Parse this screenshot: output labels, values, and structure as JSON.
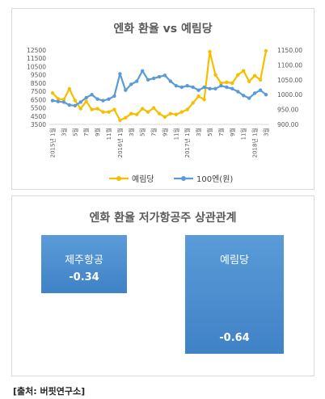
{
  "chart_data": [
    {
      "type": "line",
      "title": "엔화 환율 vs 예림당",
      "x": [
        "2015년 1월",
        "2월",
        "3월",
        "4월",
        "5월",
        "6월",
        "7월",
        "8월",
        "9월",
        "10월",
        "11월",
        "12월",
        "2016년 1월",
        "2월",
        "3월",
        "4월",
        "5월",
        "6월",
        "7월",
        "8월",
        "9월",
        "10월",
        "11월",
        "12월",
        "2017년 1월",
        "2월",
        "3월",
        "4월",
        "5월",
        "6월",
        "7월",
        "8월",
        "9월",
        "10월",
        "11월",
        "12월",
        "2018년 1월",
        "2월",
        "3월"
      ],
      "x_tick_labels": [
        "2015년 1월",
        "3월",
        "5월",
        "7월",
        "9월",
        "11월",
        "2016년 1월",
        "3월",
        "5월",
        "7월",
        "9월",
        "11월",
        "2017년 1월",
        "3월",
        "5월",
        "7월",
        "9월",
        "11월",
        "2018년 1월",
        "3월"
      ],
      "left_axis": {
        "min": 3500,
        "max": 12500,
        "ticks": [
          3500,
          4500,
          5500,
          6500,
          7500,
          8500,
          9500,
          10500,
          11500,
          12500
        ]
      },
      "right_axis": {
        "min": 900,
        "max": 1150,
        "ticks": [
          "900.00",
          "950.00",
          "1000.00",
          "1050.00",
          "1100.00",
          "1150.00"
        ]
      },
      "series": [
        {
          "name": "예림당",
          "axis": "left",
          "color": "#f5bf00",
          "values": [
            7300,
            6600,
            6500,
            7800,
            6400,
            5400,
            6300,
            5300,
            5400,
            5000,
            5000,
            5300,
            4000,
            4300,
            4800,
            4700,
            5400,
            5000,
            5500,
            4800,
            4400,
            4800,
            4700,
            5000,
            5300,
            6100,
            6900,
            6500,
            12300,
            9500,
            8500,
            8600,
            8500,
            9500,
            10000,
            8700,
            9400,
            8900,
            12400
          ]
        },
        {
          "name": "100엔(원)",
          "axis": "right",
          "color": "#5b9bd5",
          "values": [
            980,
            977,
            975,
            965,
            963,
            975,
            990,
            1000,
            985,
            980,
            985,
            995,
            1070,
            1015,
            1035,
            1045,
            1080,
            1050,
            1055,
            1060,
            1065,
            1045,
            1030,
            1025,
            1030,
            1025,
            1015,
            1025,
            1020,
            1020,
            1030,
            1025,
            1020,
            1010,
            997,
            988,
            1005,
            1015,
            1000
          ]
        }
      ]
    },
    {
      "type": "bar",
      "title": "엔화 환율 저가항공주 상관관계",
      "categories": [
        "제주항공",
        "예림당"
      ],
      "values": [
        -0.34,
        -0.64
      ],
      "value_labels": [
        "-0.34",
        "-0.64"
      ]
    }
  ],
  "source": "[출처: 버핏연구소]",
  "colors": {
    "yellow": "#f5bf00",
    "blue": "#5b9bd5",
    "bar": "#4a8fd0"
  }
}
